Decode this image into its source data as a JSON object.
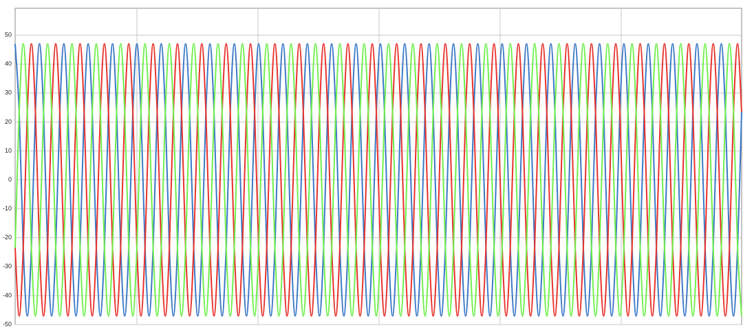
{
  "chart_data": {
    "type": "line",
    "ylim": [
      -50,
      59.3
    ],
    "yticks": [
      -50,
      -40,
      -30,
      -20,
      -10,
      0,
      10,
      20,
      30,
      40,
      50
    ],
    "grid": true,
    "series": [
      {
        "color": "#3b78c5",
        "values": [
          47,
          23.5,
          -23.5,
          -47,
          -23.5,
          23.5,
          47,
          23.5,
          -23.5,
          -47,
          -23.5,
          23.5,
          47,
          23.5,
          -23.5,
          -47,
          -23.5,
          23.5,
          47,
          23.5,
          -23.5,
          -47,
          -23.5,
          23.5,
          47,
          23.5,
          -23.5,
          -47,
          -23.5,
          23.5,
          47,
          23.5,
          -23.5,
          -47,
          -23.5,
          23.5,
          47,
          23.5,
          -23.5,
          -47,
          -23.5,
          23.5,
          47,
          23.5,
          -23.5,
          -47,
          -23.5,
          23.5,
          47,
          23.5,
          -23.5,
          -47,
          -23.5,
          23.5,
          47,
          23.5,
          -23.5,
          -47,
          -23.5,
          23.5,
          47,
          23.5,
          -23.5,
          -47,
          -23.5,
          23.5,
          47,
          23.5,
          -23.5,
          -47,
          -23.5,
          23.5,
          47,
          23.5,
          -23.5,
          -47,
          -23.5,
          23.5,
          47,
          23.5,
          -23.5,
          -47,
          -23.5,
          23.5,
          47,
          23.5,
          -23.5,
          -47,
          -23.5,
          23.5,
          47,
          23.5,
          -23.5,
          -47,
          -23.5,
          23.5,
          47,
          23.5,
          -23.5,
          -47,
          -23.5,
          23.5,
          47,
          23.5,
          -23.5,
          -47,
          -23.5,
          23.5,
          47,
          23.5,
          -23.5,
          -47,
          -23.5,
          23.5,
          47,
          23.5,
          -23.5,
          -47,
          -23.5,
          23.5,
          47,
          23.5,
          -23.5,
          -47,
          -23.5,
          23.5,
          47,
          23.5,
          -23.5,
          -47,
          -23.5,
          23.5,
          47,
          23.5,
          -23.5,
          -47,
          -23.5,
          23.5,
          47,
          23.5,
          -23.5,
          -47,
          -23.5,
          23.5,
          47,
          23.5,
          -23.5,
          -47,
          -23.5,
          23.5,
          47,
          23.5,
          -23.5,
          -47,
          -23.5,
          23.5,
          47,
          23.5,
          -23.5,
          -47,
          -23.5,
          23.5,
          47,
          23.5,
          -23.5,
          -47,
          -23.5,
          23.5,
          47,
          23.5,
          -23.5,
          -47,
          -23.5,
          23.5,
          47,
          23.5,
          -23.5,
          -47,
          -23.5,
          23.5
        ]
      },
      {
        "color": "#e8312b",
        "values": [
          -23.5,
          -47,
          -23.5,
          23.5,
          47,
          23.5,
          -23.5,
          -47,
          -23.5,
          23.5,
          47,
          23.5,
          -23.5,
          -47,
          -23.5,
          23.5,
          47,
          23.5,
          -23.5,
          -47,
          -23.5,
          23.5,
          47,
          23.5,
          -23.5,
          -47,
          -23.5,
          23.5,
          47,
          23.5,
          -23.5,
          -47,
          -23.5,
          23.5,
          47,
          23.5,
          -23.5,
          -47,
          -23.5,
          23.5,
          47,
          23.5,
          -23.5,
          -47,
          -23.5,
          23.5,
          47,
          23.5,
          -23.5,
          -47,
          -23.5,
          23.5,
          47,
          23.5,
          -23.5,
          -47,
          -23.5,
          23.5,
          47,
          23.5,
          -23.5,
          -47,
          -23.5,
          23.5,
          47,
          23.5,
          -23.5,
          -47,
          -23.5,
          23.5,
          47,
          23.5,
          -23.5,
          -47,
          -23.5,
          23.5,
          47,
          23.5,
          -23.5,
          -47,
          -23.5,
          23.5,
          47,
          23.5,
          -23.5,
          -47,
          -23.5,
          23.5,
          47,
          23.5,
          -23.5,
          -47,
          -23.5,
          23.5,
          47,
          23.5,
          -23.5,
          -47,
          -23.5,
          23.5,
          47,
          23.5,
          -23.5,
          -47,
          -23.5,
          23.5,
          47,
          23.5,
          -23.5,
          -47,
          -23.5,
          23.5,
          47,
          23.5,
          -23.5,
          -47,
          -23.5,
          23.5,
          47,
          23.5,
          -23.5,
          -47,
          -23.5,
          23.5,
          47,
          23.5,
          -23.5,
          -47,
          -23.5,
          23.5,
          47,
          23.5,
          -23.5,
          -47,
          -23.5,
          23.5,
          47,
          23.5,
          -23.5,
          -47,
          -23.5,
          23.5,
          47,
          23.5,
          -23.5,
          -47,
          -23.5,
          23.5,
          47,
          23.5,
          -23.5,
          -47,
          -23.5,
          23.5,
          47,
          23.5,
          -23.5,
          -47,
          -23.5,
          23.5,
          47,
          23.5,
          -23.5,
          -47,
          -23.5,
          23.5,
          47,
          23.5,
          -23.5,
          -47,
          -23.5,
          23.5,
          47,
          23.5,
          -23.5,
          -47,
          -23.5,
          23.5,
          47,
          23.5
        ]
      },
      {
        "color": "#6ff04b",
        "values": [
          -23.5,
          23.5,
          47,
          23.5,
          -23.5,
          -47,
          -23.5,
          23.5,
          47,
          23.5,
          -23.5,
          -47,
          -23.5,
          23.5,
          47,
          23.5,
          -23.5,
          -47,
          -23.5,
          23.5,
          47,
          23.5,
          -23.5,
          -47,
          -23.5,
          23.5,
          47,
          23.5,
          -23.5,
          -47,
          -23.5,
          23.5,
          47,
          23.5,
          -23.5,
          -47,
          -23.5,
          23.5,
          47,
          23.5,
          -23.5,
          -47,
          -23.5,
          23.5,
          47,
          23.5,
          -23.5,
          -47,
          -23.5,
          23.5,
          47,
          23.5,
          -23.5,
          -47,
          -23.5,
          23.5,
          47,
          23.5,
          -23.5,
          -47,
          -23.5,
          23.5,
          47,
          23.5,
          -23.5,
          -47,
          -23.5,
          23.5,
          47,
          23.5,
          -23.5,
          -47,
          -23.5,
          23.5,
          47,
          23.5,
          -23.5,
          -47,
          -23.5,
          23.5,
          47,
          23.5,
          -23.5,
          -47,
          -23.5,
          23.5,
          47,
          23.5,
          -23.5,
          -47,
          -23.5,
          23.5,
          47,
          23.5,
          -23.5,
          -47,
          -23.5,
          23.5,
          47,
          23.5,
          -23.5,
          -47,
          -23.5,
          23.5,
          47,
          23.5,
          -23.5,
          -47,
          -23.5,
          23.5,
          47,
          23.5,
          -23.5,
          -47,
          -23.5,
          23.5,
          47,
          23.5,
          -23.5,
          -47,
          -23.5,
          23.5,
          47,
          23.5,
          -23.5,
          -47,
          -23.5,
          23.5,
          47,
          23.5,
          -23.5,
          -47,
          -23.5,
          23.5,
          47,
          23.5,
          -23.5,
          -47,
          -23.5,
          23.5,
          47,
          23.5,
          -23.5,
          -47,
          -23.5,
          23.5,
          47,
          23.5,
          -23.5,
          -47,
          -23.5,
          23.5,
          47,
          23.5,
          -23.5,
          -47,
          -23.5,
          23.5,
          47,
          23.5,
          -23.5,
          -47,
          -23.5,
          23.5,
          47,
          23.5,
          -23.5,
          -47,
          -23.5,
          23.5,
          47,
          23.5,
          -23.5,
          -47,
          -23.5,
          23.5,
          47,
          23.5,
          -23.5,
          -47
        ]
      }
    ]
  }
}
